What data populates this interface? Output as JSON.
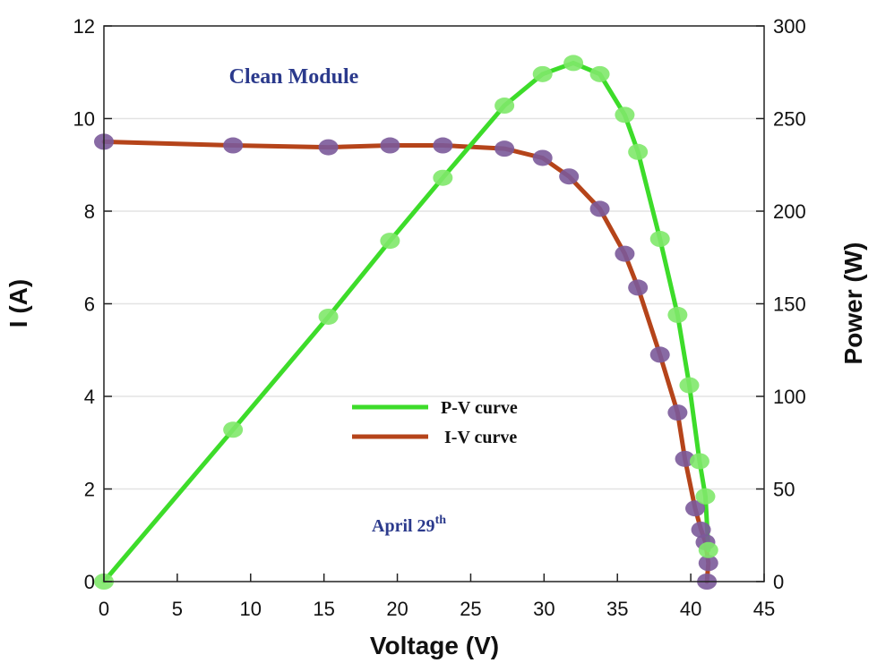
{
  "chart_data": {
    "type": "line",
    "title": "",
    "xlabel": "Voltage (V)",
    "ylabel": "I (A)",
    "y2label": "Power (W)",
    "xlim": [
      0,
      45
    ],
    "ylim": [
      0,
      12
    ],
    "y2lim": [
      0,
      300
    ],
    "xticks": [
      0,
      5,
      10,
      15,
      20,
      25,
      30,
      35,
      40,
      45
    ],
    "yticks": [
      0,
      2,
      4,
      6,
      8,
      10,
      12
    ],
    "y2ticks": [
      0,
      50,
      100,
      150,
      200,
      250,
      300
    ],
    "grid": true,
    "legend_position": "center",
    "annotations": {
      "module": "Clean Module",
      "date_main": "April 29",
      "date_sup": "th"
    },
    "series": [
      {
        "name": "P-V curve",
        "axis": "right",
        "color": "#3ddc2a",
        "x": [
          0,
          8.8,
          15.3,
          19.5,
          23.1,
          27.3,
          29.9,
          32.0,
          33.8,
          35.5,
          36.4,
          37.9,
          39.1,
          39.9,
          40.6,
          41.0,
          41.2
        ],
        "y": [
          0,
          82,
          143,
          184,
          218,
          257,
          274,
          280,
          274,
          252,
          232,
          185,
          144,
          106,
          65,
          46,
          17
        ]
      },
      {
        "name": "I-V curve",
        "axis": "left",
        "color": "#b5441a",
        "x": [
          0,
          8.8,
          15.3,
          19.5,
          23.1,
          27.3,
          29.9,
          31.7,
          33.8,
          35.5,
          36.4,
          37.9,
          39.1,
          39.6,
          40.3,
          40.7,
          41.0,
          41.2,
          41.1
        ],
        "y": [
          9.5,
          9.42,
          9.38,
          9.42,
          9.42,
          9.35,
          9.15,
          8.75,
          8.05,
          7.08,
          6.35,
          4.9,
          3.65,
          2.65,
          1.58,
          1.12,
          0.85,
          0.4,
          0
        ]
      }
    ]
  }
}
